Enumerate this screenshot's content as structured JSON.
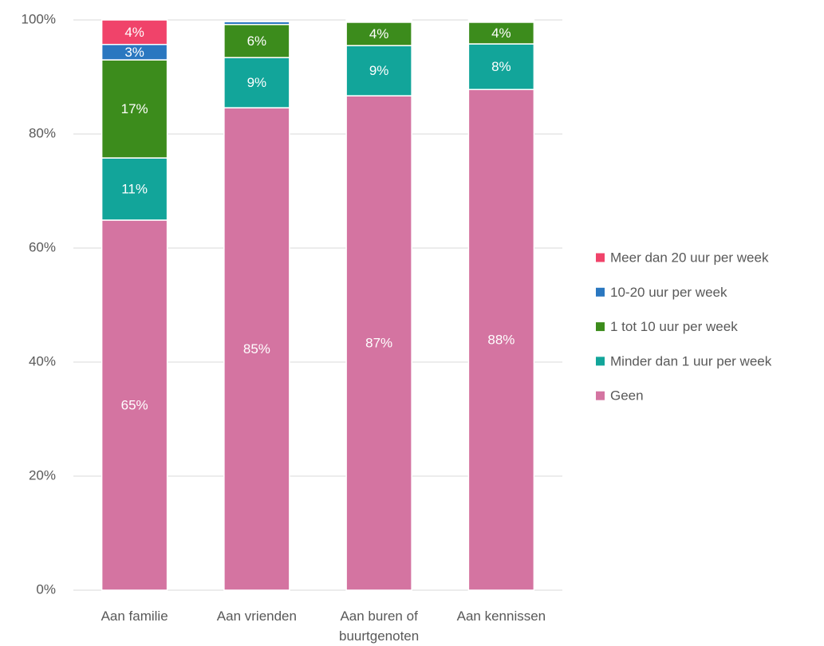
{
  "chart_data": {
    "type": "stacked_bar",
    "categories": [
      "Aan familie",
      "Aan vrienden",
      "Aan buren of buurtgenoten",
      "Aan kennissen"
    ],
    "series": [
      {
        "name": "Geen",
        "color": "#d474a1",
        "values": [
          64.9,
          84.6,
          86.7,
          87.8
        ],
        "value_labels": [
          "65%",
          "85%",
          "87%",
          "88%"
        ]
      },
      {
        "name": "Minder dan 1 uur per week",
        "color": "#12a59a",
        "values": [
          10.9,
          8.8,
          8.8,
          8.0
        ],
        "value_labels": [
          "11%",
          "9%",
          "9%",
          "8%"
        ]
      },
      {
        "name": "1 tot 10 uur per week",
        "color": "#3c8c1c",
        "values": [
          17.2,
          5.8,
          4.1,
          3.8
        ],
        "value_labels": [
          "17%",
          "6%",
          "4%",
          "4%"
        ]
      },
      {
        "name": "10-20 uur per week",
        "color": "#2a77c0",
        "values": [
          2.7,
          0.5,
          0.2,
          0.2
        ],
        "value_labels": [
          "3%",
          null,
          null,
          null
        ]
      },
      {
        "name": "Meer dan 20 uur per week",
        "color": "#f0436a",
        "values": [
          4.3,
          0,
          0.2,
          0.2
        ],
        "value_labels": [
          "4%",
          null,
          null,
          null
        ]
      }
    ],
    "ylim": [
      0,
      100
    ],
    "yticks": [
      {
        "value": 0,
        "label": "0%"
      },
      {
        "value": 20,
        "label": "20%"
      },
      {
        "value": 40,
        "label": "40%"
      },
      {
        "value": 60,
        "label": "60%"
      },
      {
        "value": 80,
        "label": "80%"
      },
      {
        "value": 100,
        "label": "100%"
      }
    ],
    "grid": true,
    "legend": "right"
  }
}
